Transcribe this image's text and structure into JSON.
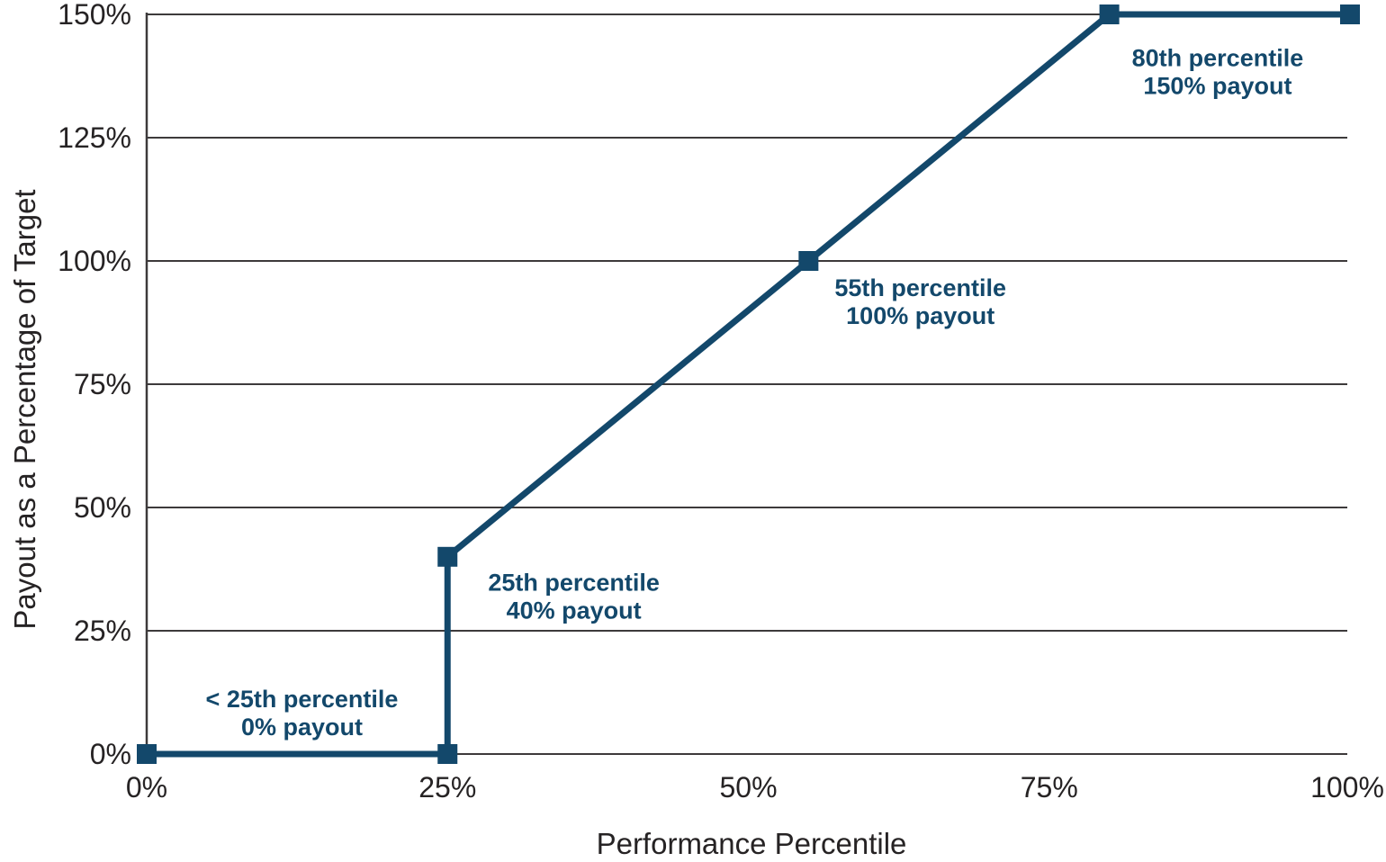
{
  "figure": {
    "background": "#FFFFFF"
  },
  "colors": {
    "line": "#13486B",
    "marker": "#13486B",
    "annotation_text": "#13486B",
    "axis_text": "#262324",
    "gridline": "#3D3A3B"
  },
  "chart_data": {
    "type": "line",
    "title": "",
    "xlabel": "Performance Percentile",
    "ylabel": "Payout as a Percentage of Target",
    "xlim": [
      0,
      100
    ],
    "ylim": [
      0,
      150
    ],
    "grid": "horizontal-only",
    "legend": "none",
    "x_ticks": [
      {
        "value": 0,
        "label": "0%"
      },
      {
        "value": 25,
        "label": "25%"
      },
      {
        "value": 50,
        "label": "50%"
      },
      {
        "value": 75,
        "label": "75%"
      },
      {
        "value": 100,
        "label": "100%"
      }
    ],
    "y_ticks": [
      {
        "value": 0,
        "label": "0%"
      },
      {
        "value": 25,
        "label": "25%"
      },
      {
        "value": 50,
        "label": "50%"
      },
      {
        "value": 75,
        "label": "75%"
      },
      {
        "value": 100,
        "label": "100%"
      },
      {
        "value": 125,
        "label": "125%"
      },
      {
        "value": 150,
        "label": "150%"
      }
    ],
    "series": [
      {
        "name": "Payout schedule",
        "marker": "square",
        "points": [
          {
            "x": 0,
            "y": 0
          },
          {
            "x": 25,
            "y": 0
          },
          {
            "x": 25,
            "y": 40
          },
          {
            "x": 55,
            "y": 100
          },
          {
            "x": 80,
            "y": 150
          },
          {
            "x": 100,
            "y": 150
          }
        ]
      }
    ],
    "annotations": [
      {
        "lines": [
          "< 25th percentile",
          "0% payout"
        ],
        "anchor_x": 12.9,
        "anchor_y": 8.6
      },
      {
        "lines": [
          "25th percentile",
          "40% payout"
        ],
        "anchor_x": 35.5,
        "anchor_y": 32.2
      },
      {
        "lines": [
          "55th percentile",
          "100% payout"
        ],
        "anchor_x": 64.3,
        "anchor_y": 92.0
      },
      {
        "lines": [
          "80th percentile",
          "150% payout"
        ],
        "anchor_x": 89.0,
        "anchor_y": 138.6
      }
    ]
  }
}
